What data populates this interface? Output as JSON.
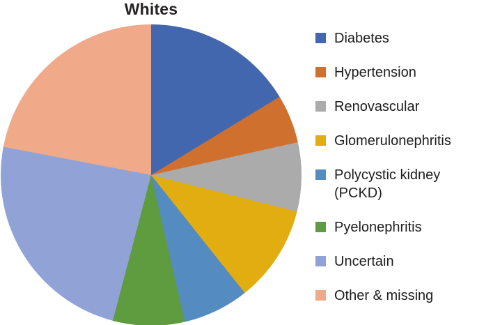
{
  "chart_data": {
    "type": "pie",
    "title": "Whites",
    "legend_position": "right",
    "start_angle_deg": 0,
    "direction": "clockwise",
    "values_are": "percent (estimated from slice angles; no numeric labels shown in figure)",
    "segments": [
      {
        "label": "Diabetes",
        "legend_label": "Diabetes",
        "value_pct": 16.3,
        "color": "#4267AE"
      },
      {
        "label": "Hypertension",
        "legend_label": "Hypertension",
        "value_pct": 5.2,
        "color": "#D0702E"
      },
      {
        "label": "Renovascular",
        "legend_label": "Renovascular",
        "value_pct": 7.4,
        "color": "#ABABAB"
      },
      {
        "label": "Glomerulonephritis",
        "legend_label": "Glomerulonephritis",
        "value_pct": 10.4,
        "color": "#E2AD10"
      },
      {
        "label": "Polycystic kidney (PCKD)",
        "legend_label": "Polycystic kidney\n(PCKD)",
        "value_pct": 7.1,
        "color": "#548BC0"
      },
      {
        "label": "Pyelonephritis",
        "legend_label": "Pyelonephritis",
        "value_pct": 7.7,
        "color": "#5E9C3F"
      },
      {
        "label": "Uncertain",
        "legend_label": "Uncertain",
        "value_pct": 23.9,
        "color": "#91A3D6"
      },
      {
        "label": "Other & missing",
        "legend_label": "Other & missing",
        "value_pct": 22.0,
        "color": "#F0A989"
      }
    ]
  }
}
